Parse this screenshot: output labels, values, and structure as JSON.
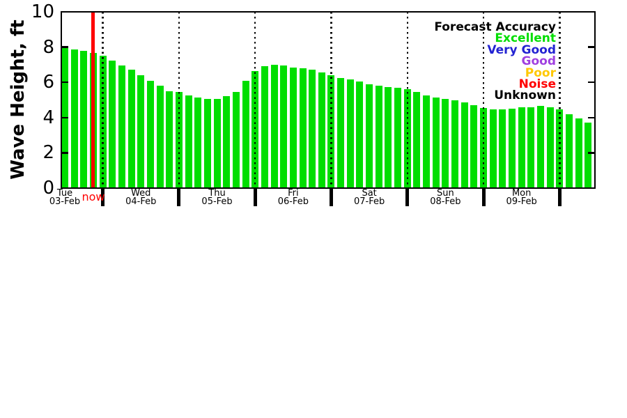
{
  "chart_data": {
    "type": "bar",
    "title": "",
    "ylabel": "Wave Height, ft",
    "xlabel": "",
    "ylim": [
      0,
      10
    ],
    "yticks": [
      0,
      2,
      4,
      6,
      8,
      10
    ],
    "interval_hours": 3,
    "bars_per_day": 8,
    "grid": "vertical dotted lines at day boundaries",
    "legend_position": "top-right",
    "bar_category": "Excellent",
    "values": [
      8.05,
      7.85,
      7.8,
      7.65,
      7.5,
      7.25,
      6.95,
      6.7,
      6.4,
      6.1,
      5.8,
      5.5,
      5.45,
      5.25,
      5.15,
      5.05,
      5.05,
      5.2,
      5.45,
      6.1,
      6.65,
      6.9,
      7.0,
      6.95,
      6.85,
      6.8,
      6.7,
      6.55,
      6.4,
      6.25,
      6.15,
      6.05,
      5.9,
      5.8,
      5.75,
      5.7,
      5.6,
      5.45,
      5.25,
      5.15,
      5.05,
      5.0,
      4.85,
      4.7,
      4.55,
      4.45,
      4.45,
      4.5,
      4.6,
      4.6,
      4.65,
      4.6,
      4.45,
      4.2,
      3.95,
      3.7
    ],
    "days": [
      {
        "weekday": "Tue",
        "date": "03-Feb"
      },
      {
        "weekday": "Wed",
        "date": "04-Feb"
      },
      {
        "weekday": "Thu",
        "date": "05-Feb"
      },
      {
        "weekday": "Fri",
        "date": "06-Feb"
      },
      {
        "weekday": "Sat",
        "date": "07-Feb"
      },
      {
        "weekday": "Sun",
        "date": "08-Feb"
      },
      {
        "weekday": "Mon",
        "date": "09-Feb"
      }
    ],
    "day_label_bar_indices": [
      0,
      8,
      16,
      24,
      32,
      40,
      48
    ],
    "day_boundary_bar_indices": [
      4,
      12,
      20,
      28,
      36,
      44,
      52
    ],
    "now": {
      "label": "now",
      "bar_index": 3
    }
  },
  "legend": {
    "title": "Forecast Accuracy",
    "entries": [
      {
        "label": "Excellent",
        "color": "#00DE00"
      },
      {
        "label": "Very Good",
        "color": "#2323D2"
      },
      {
        "label": "Good",
        "color": "#A040E0"
      },
      {
        "label": "Poor",
        "color": "#FFC800"
      },
      {
        "label": "Noise",
        "color": "#FF0000"
      },
      {
        "label": "Unknown",
        "color": "#000000"
      }
    ]
  },
  "colors": {
    "bar": "#00DE00",
    "now_line": "#FF0000",
    "now_label": "#FF0000",
    "axis": "#000000",
    "background": "#FFFFFF"
  }
}
